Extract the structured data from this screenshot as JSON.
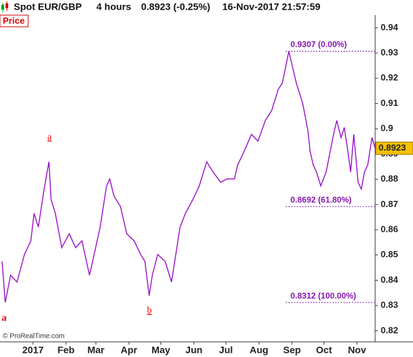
{
  "chart_data": {
    "type": "line",
    "header": {
      "symbol": "Spot EUR/GBP",
      "period": "4 hours",
      "quote": "0.8923 (-0.25%)",
      "timestamp": "16-Nov-2017 21:57:59"
    },
    "panel_label": "Price",
    "copyright": "© ProRealTime.com",
    "x": [
      -29,
      -26,
      -21,
      -15,
      -8,
      -2,
      1,
      5,
      8,
      11,
      15,
      17,
      21,
      27,
      34,
      40,
      46,
      53,
      56,
      63,
      69,
      72,
      76,
      82,
      88,
      95,
      101,
      105,
      109,
      112,
      117,
      124,
      130,
      134,
      138,
      143,
      150,
      156,
      163,
      169,
      176,
      182,
      189,
      192,
      198,
      205,
      211,
      218,
      224,
      230,
      234,
      240,
      247,
      253,
      258,
      260,
      263,
      266,
      270,
      275,
      282,
      285,
      289,
      292,
      295,
      298,
      301,
      305,
      308,
      311,
      314,
      318,
      321
    ],
    "series": [
      {
        "name": "Spot EUR/GBP",
        "color": "#9a10c8",
        "values": [
          0.8475,
          0.8312,
          0.842,
          0.8393,
          0.8502,
          0.8556,
          0.8665,
          0.8611,
          0.8693,
          0.8774,
          0.8869,
          0.872,
          0.8665,
          0.8529,
          0.8584,
          0.8529,
          0.8556,
          0.842,
          0.8475,
          0.8611,
          0.8774,
          0.8801,
          0.8733,
          0.8693,
          0.8584,
          0.8556,
          0.8502,
          0.8475,
          0.8339,
          0.842,
          0.8502,
          0.8475,
          0.8393,
          0.8502,
          0.8611,
          0.8665,
          0.872,
          0.8774,
          0.8869,
          0.8829,
          0.8788,
          0.8801,
          0.8801,
          0.8856,
          0.891,
          0.8978,
          0.8951,
          0.9033,
          0.9073,
          0.9155,
          0.9182,
          0.9307,
          0.9182,
          0.9101,
          0.8992,
          0.891,
          0.8856,
          0.8829,
          0.8774,
          0.8829,
          0.8978,
          0.9033,
          0.8965,
          0.9005,
          0.8924,
          0.8829,
          0.8978,
          0.8788,
          0.8761,
          0.8829,
          0.8856,
          0.8965,
          0.8923
        ]
      }
    ],
    "last_value": 0.8923,
    "levels": [
      {
        "value": 0.9307,
        "label": "0.9307 (0.00%)"
      },
      {
        "value": 0.8692,
        "label": "0.8692 (61.80%)"
      },
      {
        "value": 0.8312,
        "label": "0.8312 (100.00%)"
      }
    ],
    "annotations": [
      "a",
      "a",
      "b"
    ],
    "xlim": [
      -29,
      321
    ],
    "ylim": [
      0.8156,
      0.951
    ],
    "yticks": [
      0.82,
      0.83,
      0.84,
      0.85,
      0.86,
      0.87,
      0.88,
      0.89,
      {
        "value": 0.9,
        "label": "0.9"
      },
      0.91,
      0.92,
      0.93,
      0.94
    ],
    "xticks": [
      {
        "value": 0,
        "label": "2017"
      },
      {
        "value": 31,
        "label": "Feb"
      },
      {
        "value": 59,
        "label": "Mar"
      },
      {
        "value": 90,
        "label": "Apr"
      },
      {
        "value": 120,
        "label": "May"
      },
      {
        "value": 151,
        "label": "Jun"
      },
      {
        "value": 181,
        "label": "Jul"
      },
      {
        "value": 212,
        "label": "Aug"
      },
      {
        "value": 243,
        "label": "Sep"
      },
      {
        "value": 273,
        "label": "Oct"
      },
      {
        "value": 304,
        "label": "Nov"
      }
    ]
  }
}
